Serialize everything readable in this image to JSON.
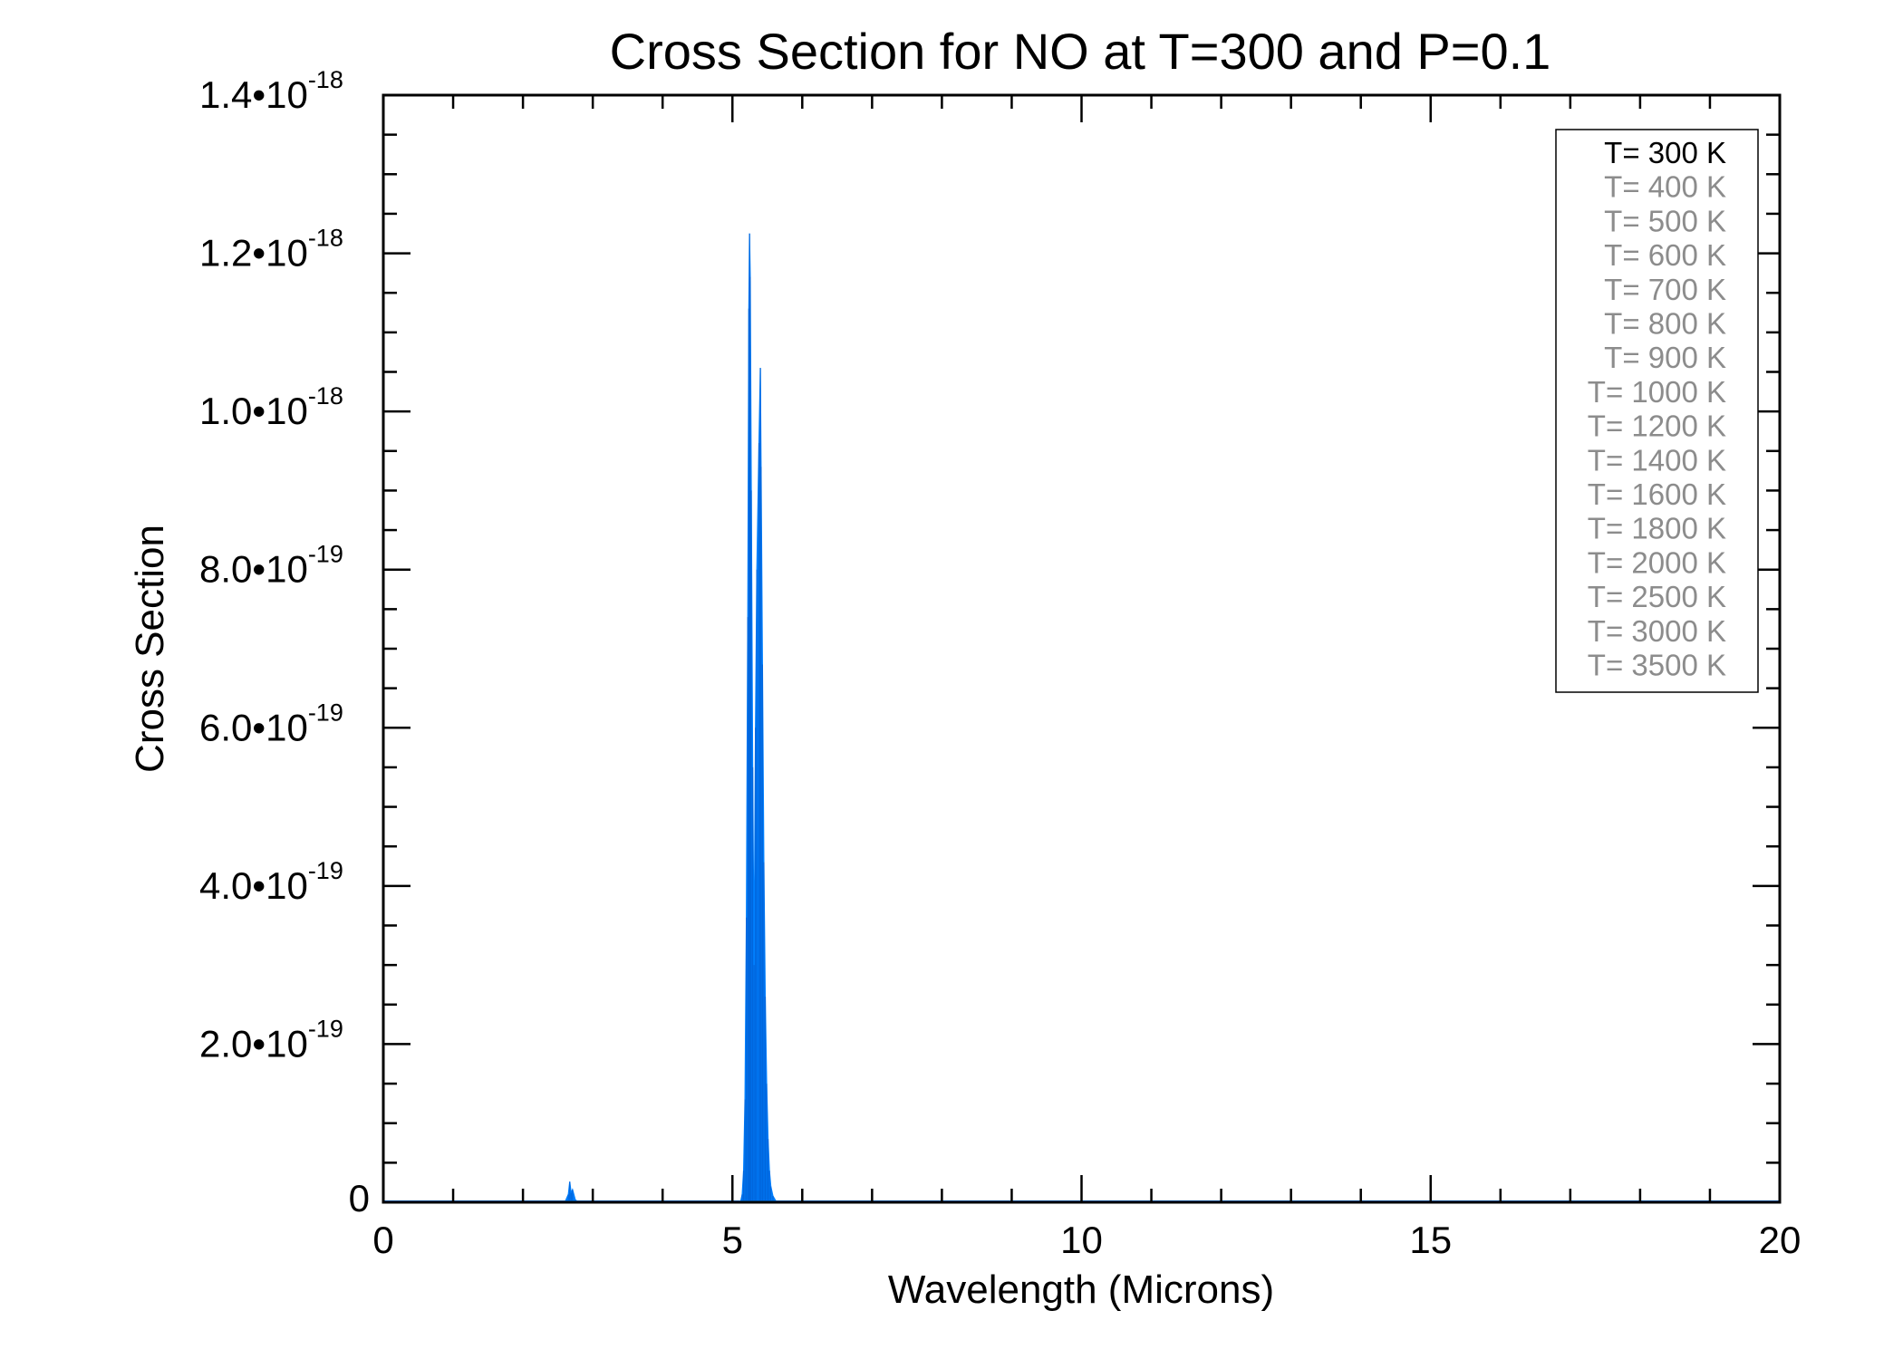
{
  "chart_data": {
    "type": "area",
    "title": "Cross Section for NO at T=300 and P=0.1",
    "xlabel": "Wavelength (Microns)",
    "ylabel": "Cross Section",
    "xlim": [
      0,
      20
    ],
    "ylim": [
      0,
      1.4e-18
    ],
    "x_ticks": [
      0,
      5,
      10,
      15,
      20
    ],
    "x_tick_labels": [
      "0",
      "5",
      "10",
      "15",
      "20"
    ],
    "x_minor_step": 1,
    "y_ticks": [
      0,
      2e-19,
      4e-19,
      6e-19,
      8e-19,
      1e-18,
      1.2e-18,
      1.4e-18
    ],
    "y_tick_labels": [
      {
        "mantissa": "0",
        "exponent": ""
      },
      {
        "mantissa": "2.0•10",
        "exponent": "-19"
      },
      {
        "mantissa": "4.0•10",
        "exponent": "-19"
      },
      {
        "mantissa": "6.0•10",
        "exponent": "-19"
      },
      {
        "mantissa": "8.0•10",
        "exponent": "-19"
      },
      {
        "mantissa": "1.0•10",
        "exponent": "-18"
      },
      {
        "mantissa": "1.2•10",
        "exponent": "-18"
      },
      {
        "mantissa": "1.4•10",
        "exponent": "-18"
      }
    ],
    "y_minor_step": 5e-20,
    "grid": false,
    "legend_position": "top-right",
    "legend": [
      {
        "label": "T= 300 K",
        "color": "#000000"
      },
      {
        "label": "T= 400 K",
        "color": "#8c8c8c"
      },
      {
        "label": "T= 500 K",
        "color": "#8c8c8c"
      },
      {
        "label": "T= 600 K",
        "color": "#8c8c8c"
      },
      {
        "label": "T= 700 K",
        "color": "#8c8c8c"
      },
      {
        "label": "T= 800 K",
        "color": "#8c8c8c"
      },
      {
        "label": "T= 900 K",
        "color": "#8c8c8c"
      },
      {
        "label": "T= 1000 K",
        "color": "#8c8c8c"
      },
      {
        "label": "T= 1200 K",
        "color": "#8c8c8c"
      },
      {
        "label": "T= 1400 K",
        "color": "#8c8c8c"
      },
      {
        "label": "T= 1600 K",
        "color": "#8c8c8c"
      },
      {
        "label": "T= 1800 K",
        "color": "#8c8c8c"
      },
      {
        "label": "T= 2000 K",
        "color": "#8c8c8c"
      },
      {
        "label": "T= 2500 K",
        "color": "#8c8c8c"
      },
      {
        "label": "T= 3000 K",
        "color": "#8c8c8c"
      },
      {
        "label": "T= 3500 K",
        "color": "#8c8c8c"
      }
    ],
    "series": [
      {
        "name": "T= 300 K",
        "color": "#0080ff",
        "x": [
          0,
          2.6,
          2.65,
          2.67,
          2.69,
          2.71,
          2.75,
          2.8,
          5.08,
          5.12,
          5.14,
          5.16,
          5.18,
          5.2,
          5.22,
          5.235,
          5.245,
          5.255,
          5.27,
          5.29,
          5.31,
          5.33,
          5.35,
          5.38,
          5.4,
          5.41,
          5.43,
          5.45,
          5.47,
          5.49,
          5.51,
          5.53,
          5.55,
          5.58,
          5.62,
          5.66,
          20
        ],
        "y": [
          0,
          0,
          1e-20,
          2.6e-20,
          1.2e-20,
          1.6e-20,
          3e-21,
          0,
          0,
          2e-21,
          1e-20,
          4e-20,
          1.3e-19,
          3.6e-19,
          7.4e-19,
          1.13e-18,
          1.225e-18,
          1.17e-18,
          9e-19,
          5.5e-19,
          3e-19,
          6e-19,
          8e-19,
          9.6e-19,
          1.055e-18,
          9.3e-19,
          6.8e-19,
          4.3e-19,
          2.6e-19,
          1.5e-19,
          8e-20,
          4e-20,
          2e-20,
          8e-21,
          2e-21,
          0,
          0
        ]
      }
    ]
  }
}
